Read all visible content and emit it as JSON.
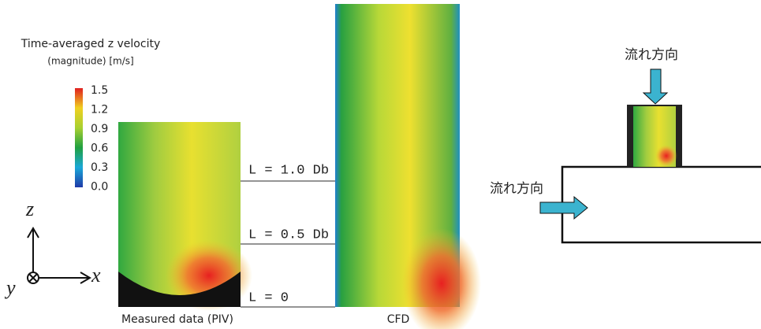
{
  "legend": {
    "title": "Time-averaged z velocity",
    "subtitle": "(magnitude) [m/s]",
    "ticks": [
      "1.5",
      "1.2",
      "0.9",
      "0.6",
      "0.3",
      "0.0"
    ]
  },
  "levels": [
    "L = 1.0 Db",
    "L = 0.5 Db",
    "L = 0"
  ],
  "panels": {
    "piv": "Measured data (PIV)",
    "cfd": "CFD"
  },
  "axes": {
    "z": "z",
    "x": "x",
    "y": "y"
  },
  "flow": {
    "top": "流れ方向",
    "side": "流れ方向"
  }
}
